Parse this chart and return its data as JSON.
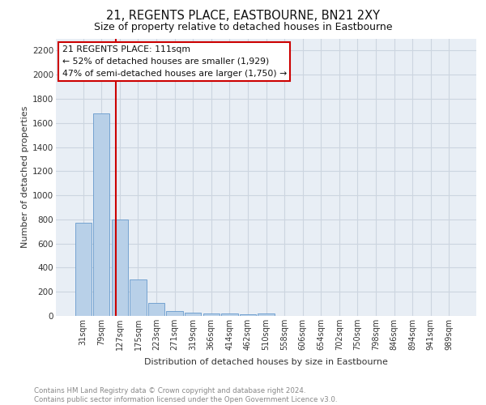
{
  "title": "21, REGENTS PLACE, EASTBOURNE, BN21 2XY",
  "subtitle": "Size of property relative to detached houses in Eastbourne",
  "xlabel": "Distribution of detached houses by size in Eastbourne",
  "ylabel": "Number of detached properties",
  "categories": [
    "31sqm",
    "79sqm",
    "127sqm",
    "175sqm",
    "223sqm",
    "271sqm",
    "319sqm",
    "366sqm",
    "414sqm",
    "462sqm",
    "510sqm",
    "558sqm",
    "606sqm",
    "654sqm",
    "702sqm",
    "750sqm",
    "798sqm",
    "846sqm",
    "894sqm",
    "941sqm",
    "989sqm"
  ],
  "values": [
    770,
    1680,
    800,
    300,
    110,
    40,
    28,
    22,
    18,
    15,
    22,
    0,
    0,
    0,
    0,
    0,
    0,
    0,
    0,
    0,
    0
  ],
  "bar_color": "#b8d0e8",
  "bar_edge_color": "#6699cc",
  "grid_color": "#ccd5e0",
  "background_color": "#e8eef5",
  "vline_color": "#cc0000",
  "vline_position": 1.78,
  "annotation_text": "21 REGENTS PLACE: 111sqm\n← 52% of detached houses are smaller (1,929)\n47% of semi-detached houses are larger (1,750) →",
  "footer": "Contains HM Land Registry data © Crown copyright and database right 2024.\nContains public sector information licensed under the Open Government Licence v3.0.",
  "ylim": [
    0,
    2300
  ],
  "yticks": [
    0,
    200,
    400,
    600,
    800,
    1000,
    1200,
    1400,
    1600,
    1800,
    2000,
    2200
  ]
}
